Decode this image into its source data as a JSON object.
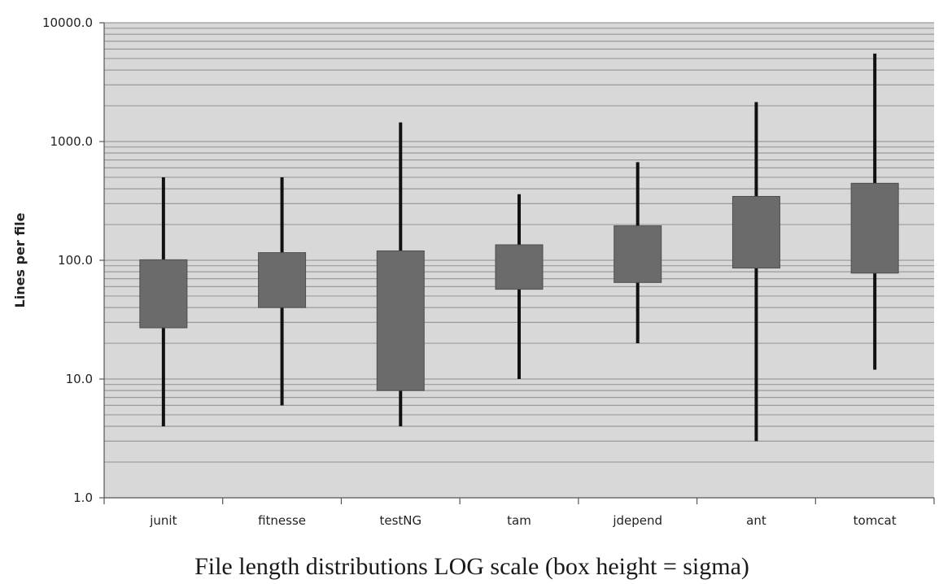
{
  "chart_data": {
    "type": "box",
    "scale": "log",
    "grid": true,
    "ylabel": "Lines per file",
    "xlabel": "",
    "ylim": [
      1,
      10000
    ],
    "yticks": [
      "1.0",
      "10.0",
      "100.0",
      "1000.0",
      "10000.0"
    ],
    "categories": [
      "junit",
      "fitnesse",
      "testNG",
      "tam",
      "jdepend",
      "ant",
      "tomcat"
    ],
    "boxes": [
      {
        "category": "junit",
        "min": 4,
        "box_low": 27,
        "box_high": 101,
        "max": 500
      },
      {
        "category": "fitnesse",
        "min": 6,
        "box_low": 40,
        "box_high": 116,
        "max": 500
      },
      {
        "category": "testNG",
        "min": 4,
        "box_low": 8,
        "box_high": 120,
        "max": 1450
      },
      {
        "category": "tam",
        "min": 10,
        "box_low": 57,
        "box_high": 135,
        "max": 360
      },
      {
        "category": "jdepend",
        "min": 20,
        "box_low": 65,
        "box_high": 195,
        "max": 670
      },
      {
        "category": "ant",
        "min": 3,
        "box_low": 86,
        "box_high": 345,
        "max": 2150
      },
      {
        "category": "tomcat",
        "min": 12,
        "box_low": 78,
        "box_high": 445,
        "max": 5500
      }
    ],
    "colors": {
      "plot_bg": "#d8d8d8",
      "box": "#6b6b6b",
      "whisker": "#111111",
      "grid": "#9a9a9a"
    }
  },
  "caption": "File length distributions LOG scale (box height = sigma)"
}
